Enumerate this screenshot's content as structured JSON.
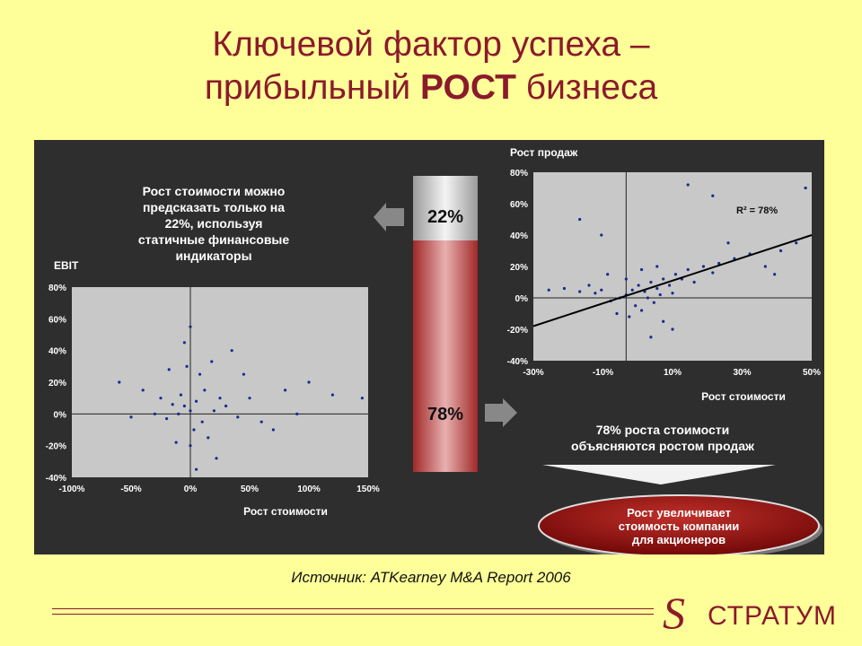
{
  "title": {
    "line1": "Ключевой фактор успеха –",
    "line2_pre": "прибыльный ",
    "line2_bold": "РОСТ",
    "line2_post": " бизнеса"
  },
  "annotation_left": [
    "Рост стоимости можно",
    "предсказать только  на",
    "22%, используя",
    "статичные финансовые",
    "индикаторы"
  ],
  "bar": {
    "top_label": "22%",
    "bottom_label": "78%",
    "top_share": 22,
    "bottom_share": 78
  },
  "annotation_right": [
    "78% роста стоимости",
    "объясняются ростом продаж"
  ],
  "oval": [
    "Рост увеличивает",
    "стоимость компании",
    "для акционеров"
  ],
  "source": "Источник: ATKearney M&A Report 2006",
  "logo": {
    "text": "СТРАТУМ",
    "mark": "S"
  },
  "colors": {
    "title": "#8B1A2B",
    "background": "#FFFF99",
    "panel": "#2e2e2e",
    "plot": "#C8C8C8",
    "points": "#1a2a8c",
    "bar_red": "#B23A3A",
    "oval": "#8B0A0A"
  },
  "chart_data": [
    {
      "type": "scatter",
      "ylabel": "EBIT",
      "xlabel": "Рост стоимости",
      "xlim": [
        -100,
        150
      ],
      "ylim": [
        -40,
        80
      ],
      "x_ticks": [
        "-100%",
        "-50%",
        "0%",
        "50%",
        "100%",
        "150%"
      ],
      "y_ticks": [
        "80%",
        "60%",
        "40%",
        "20%",
        "0%",
        "-20%",
        "-40%"
      ],
      "points": [
        [
          0,
          2
        ],
        [
          -5,
          5
        ],
        [
          5,
          8
        ],
        [
          -10,
          0
        ],
        [
          10,
          -5
        ],
        [
          -8,
          12
        ],
        [
          12,
          15
        ],
        [
          3,
          -10
        ],
        [
          -15,
          6
        ],
        [
          20,
          2
        ],
        [
          -20,
          -3
        ],
        [
          25,
          10
        ],
        [
          8,
          25
        ],
        [
          -3,
          30
        ],
        [
          15,
          -15
        ],
        [
          30,
          5
        ],
        [
          -25,
          10
        ],
        [
          0,
          -20
        ],
        [
          40,
          -2
        ],
        [
          -30,
          0
        ],
        [
          50,
          10
        ],
        [
          60,
          -5
        ],
        [
          80,
          15
        ],
        [
          100,
          20
        ],
        [
          -50,
          -2
        ],
        [
          -60,
          20
        ],
        [
          0,
          55
        ],
        [
          -5,
          45
        ],
        [
          35,
          40
        ],
        [
          -18,
          28
        ],
        [
          22,
          -28
        ],
        [
          120,
          12
        ],
        [
          145,
          10
        ],
        [
          90,
          0
        ],
        [
          70,
          -10
        ],
        [
          -40,
          15
        ],
        [
          18,
          33
        ],
        [
          -12,
          -18
        ],
        [
          45,
          25
        ],
        [
          5,
          -35
        ]
      ]
    },
    {
      "type": "scatter",
      "ylabel": "Рост продаж",
      "xlabel": "Рост стоимости",
      "xlim": [
        -30,
        60
      ],
      "ylim": [
        -40,
        80
      ],
      "x_ticks": [
        "-30%",
        "-10%",
        "10%",
        "30%",
        "50%"
      ],
      "y_ticks": [
        "80%",
        "60%",
        "40%",
        "20%",
        "0%",
        "-20%",
        "-40%"
      ],
      "annotation": "R² = 78%",
      "trendline": {
        "x": [
          -30,
          60
        ],
        "y": [
          -18,
          40
        ]
      },
      "points": [
        [
          0,
          2
        ],
        [
          2,
          5
        ],
        [
          4,
          8
        ],
        [
          6,
          4
        ],
        [
          8,
          10
        ],
        [
          10,
          6
        ],
        [
          12,
          12
        ],
        [
          14,
          8
        ],
        [
          16,
          15
        ],
        [
          18,
          12
        ],
        [
          20,
          18
        ],
        [
          -2,
          0
        ],
        [
          -5,
          -2
        ],
        [
          -8,
          5
        ],
        [
          -10,
          3
        ],
        [
          -12,
          8
        ],
        [
          -15,
          4
        ],
        [
          -20,
          6
        ],
        [
          -25,
          5
        ],
        [
          3,
          -5
        ],
        [
          5,
          -8
        ],
        [
          7,
          0
        ],
        [
          9,
          -3
        ],
        [
          11,
          2
        ],
        [
          22,
          10
        ],
        [
          25,
          20
        ],
        [
          28,
          16
        ],
        [
          30,
          22
        ],
        [
          35,
          25
        ],
        [
          40,
          28
        ],
        [
          45,
          20
        ],
        [
          50,
          30
        ],
        [
          55,
          35
        ],
        [
          58,
          70
        ],
        [
          20,
          72
        ],
        [
          28,
          65
        ],
        [
          -15,
          50
        ],
        [
          -8,
          40
        ],
        [
          12,
          -15
        ],
        [
          15,
          -20
        ],
        [
          -3,
          -10
        ],
        [
          1,
          -12
        ],
        [
          8,
          -25
        ],
        [
          33,
          35
        ],
        [
          48,
          15
        ],
        [
          0,
          12
        ],
        [
          -6,
          15
        ],
        [
          5,
          18
        ],
        [
          10,
          20
        ],
        [
          15,
          3
        ]
      ]
    }
  ]
}
